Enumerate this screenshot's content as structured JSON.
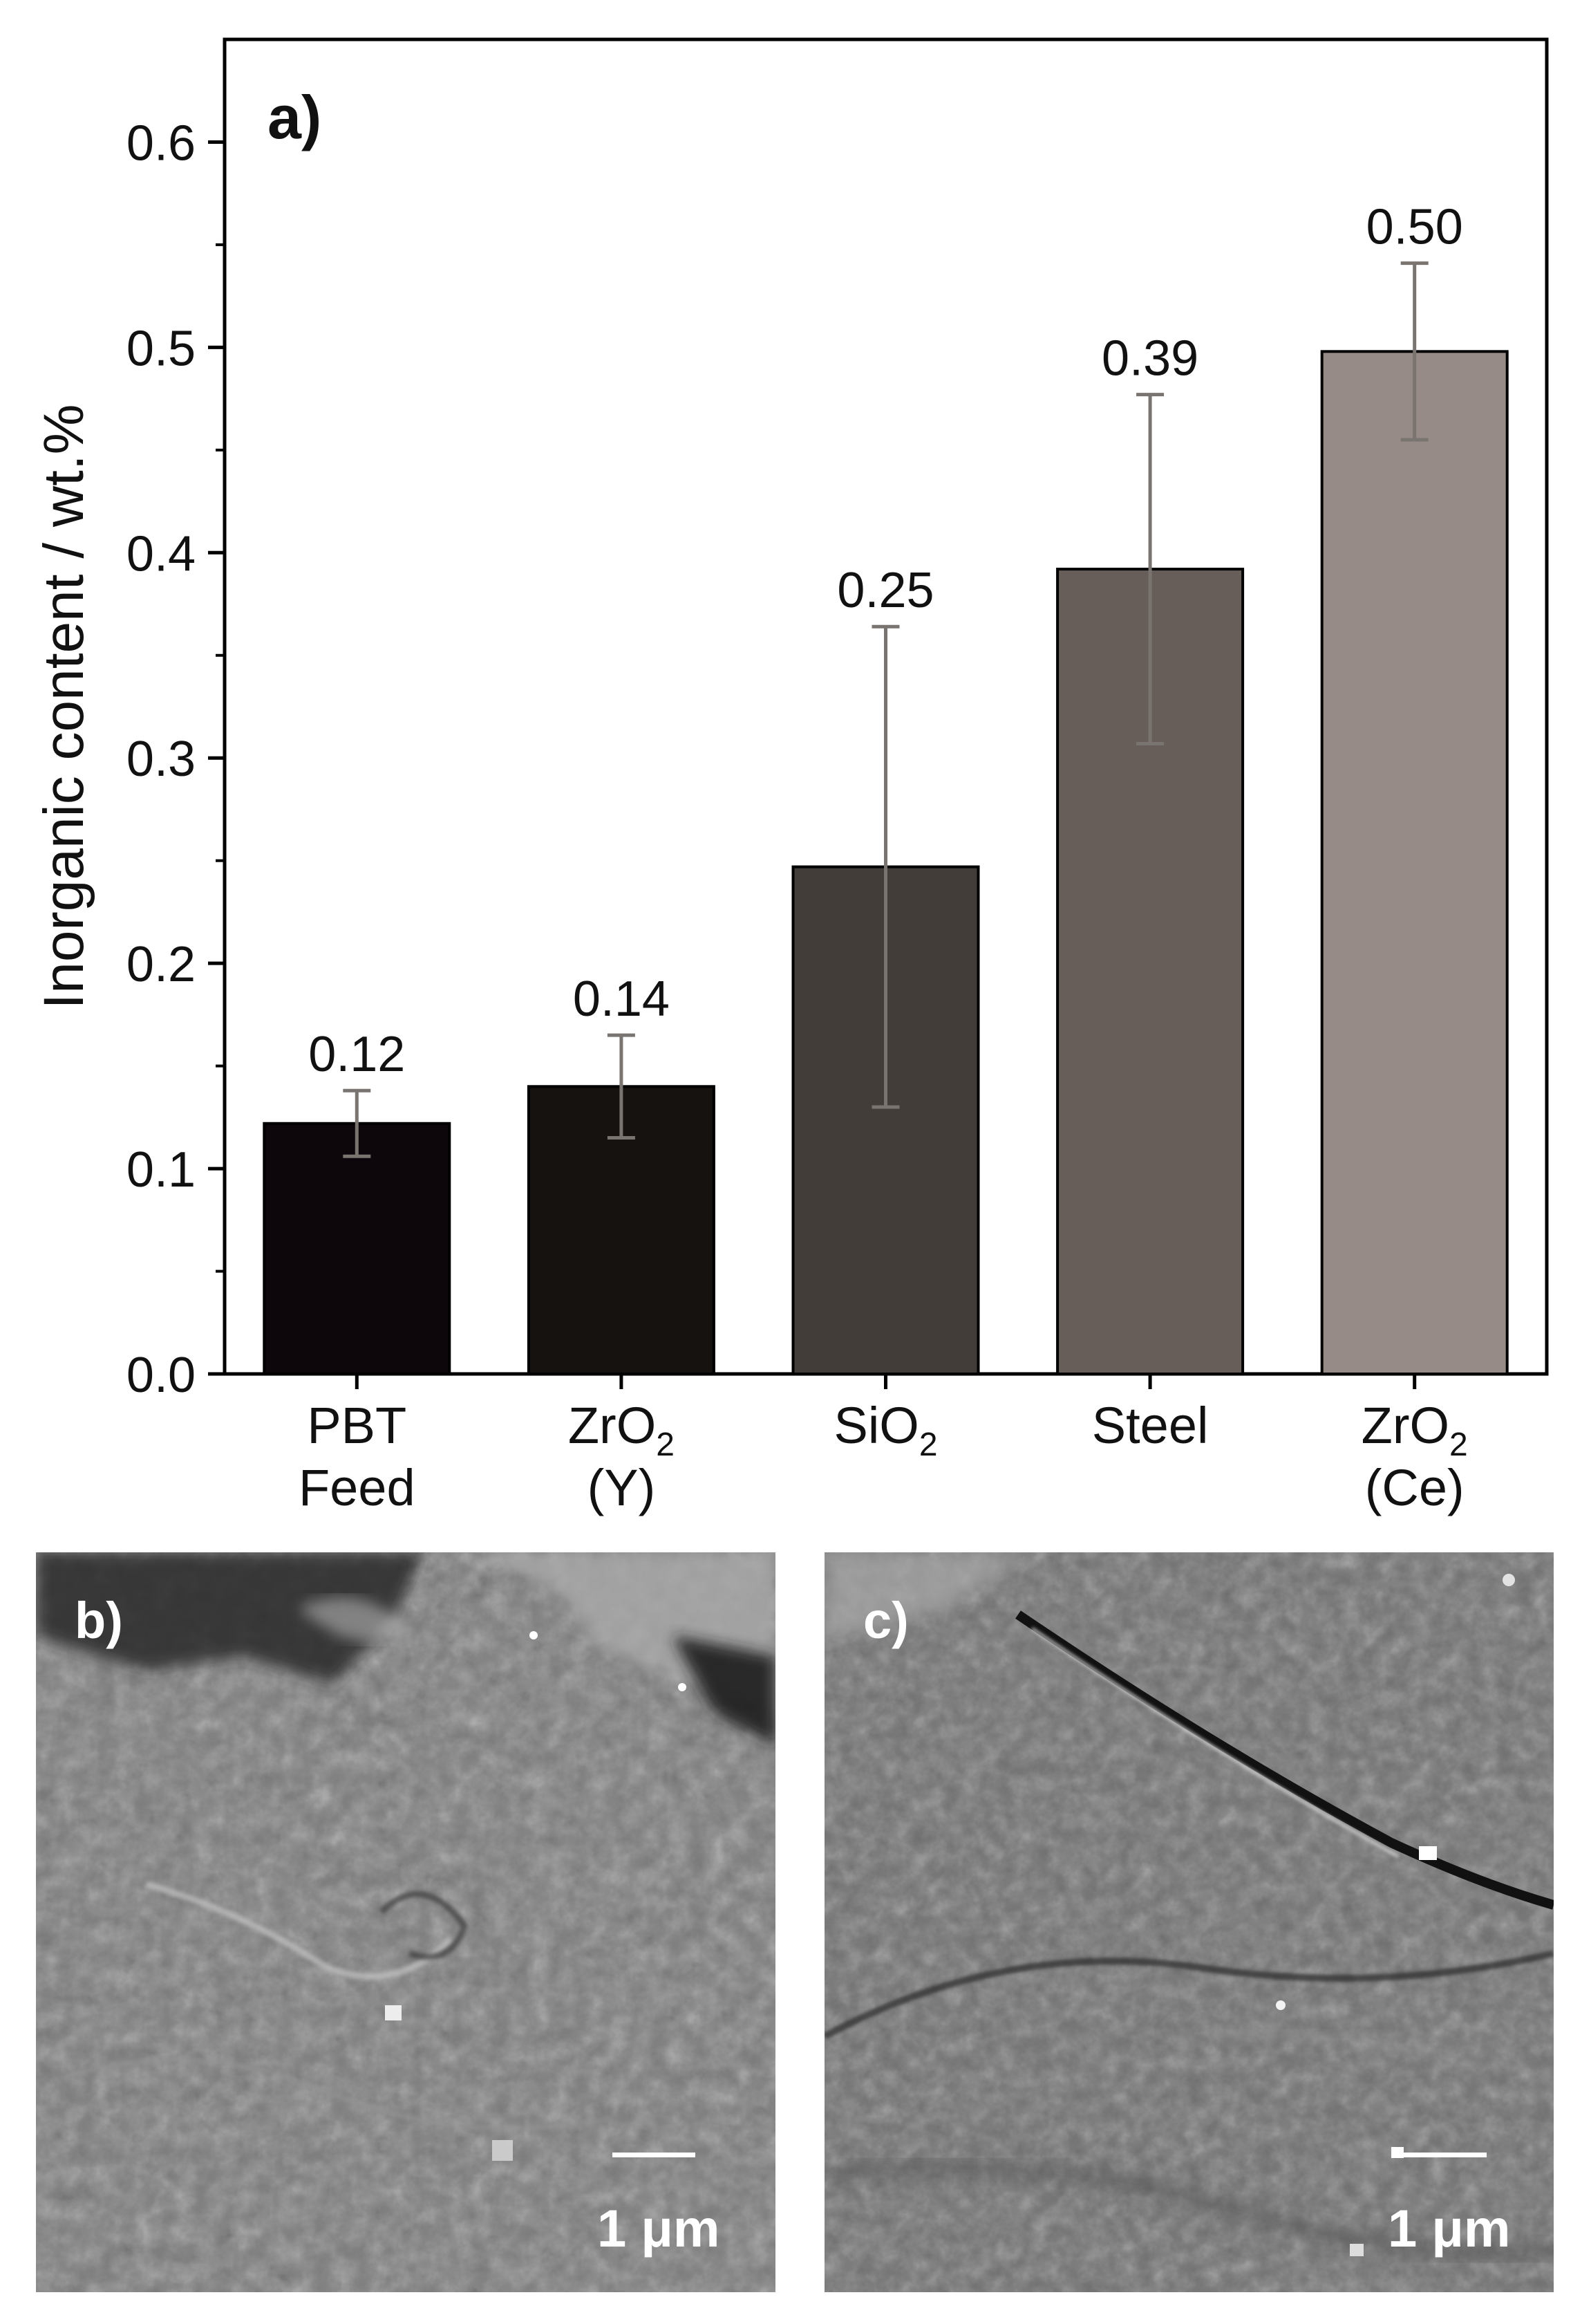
{
  "chart_data": {
    "type": "bar",
    "panel_label": "a)",
    "ylabel": "Inorganic content / wt.%",
    "xlabel": "",
    "ylim": [
      0,
      0.65
    ],
    "yticks": [
      "0.0",
      "0.1",
      "0.2",
      "0.3",
      "0.4",
      "0.5",
      "0.6"
    ],
    "yticks_values": [
      0,
      0.1,
      0.2,
      0.3,
      0.4,
      0.5,
      0.6
    ],
    "categories": [
      {
        "label": "PBT",
        "label2": "Feed"
      },
      {
        "label": "ZrO",
        "sub": "2",
        "label2": "(Y)"
      },
      {
        "label": "SiO",
        "sub": "2",
        "label2": ""
      },
      {
        "label": "Steel",
        "label2": ""
      },
      {
        "label": "ZrO",
        "sub": "2",
        "label2": "(Ce)"
      }
    ],
    "values": [
      0.122,
      0.14,
      0.247,
      0.392,
      0.498
    ],
    "errors": [
      0.016,
      0.025,
      0.117,
      0.085,
      0.043
    ],
    "data_labels": [
      "0.12",
      "0.14",
      "0.25",
      "0.39",
      "0.50"
    ],
    "colors": [
      "#0d070c",
      "#15120f",
      "#423d39",
      "#675e59",
      "#968b86"
    ],
    "error_color": "#7a7470",
    "grid": false
  },
  "micrographs": [
    {
      "label": "b)",
      "scale": "1 μm"
    },
    {
      "label": "c)",
      "scale": "1 μm"
    }
  ]
}
